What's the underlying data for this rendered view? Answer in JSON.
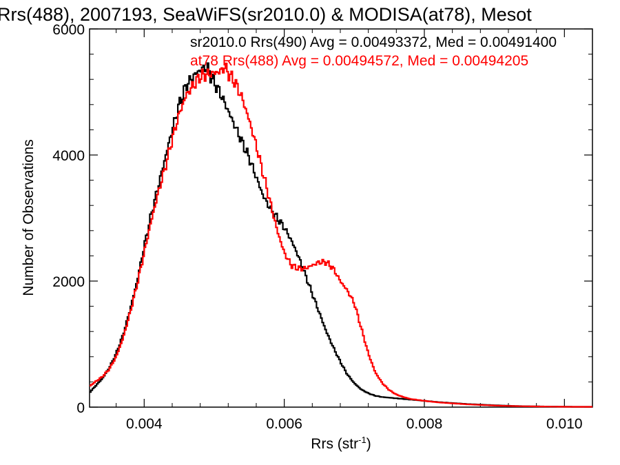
{
  "chart_data": {
    "type": "line",
    "step": true,
    "title": "Rrs(488), 2007193, SeaWiFS(sr2010.0) & MODISA(at78), Mesot",
    "xlabel": "Rrs (str",
    "xlabel_sup": "-1",
    "xlabel_suffix": ")",
    "ylabel": "Number of Observations",
    "xlim": [
      0.00322,
      0.0104
    ],
    "ylim": [
      0,
      6000
    ],
    "xticks": [
      0.004,
      0.006,
      0.008,
      0.01
    ],
    "xtick_labels": [
      "0.004",
      "0.006",
      "0.008",
      "0.010"
    ],
    "yticks": [
      0,
      2000,
      4000,
      6000
    ],
    "ytick_labels": [
      "0",
      "2000",
      "4000",
      "6000"
    ],
    "grid": false,
    "legend_placement": "top",
    "series": [
      {
        "name": "sr2010.0 Rrs(490) Avg = 0.00493372, Med = 0.00491400",
        "color": "#000000",
        "x": [
          0.00322,
          0.0033,
          0.0034,
          0.0035,
          0.0036,
          0.0037,
          0.0038,
          0.0039,
          0.004,
          0.0041,
          0.0042,
          0.0043,
          0.0044,
          0.0045,
          0.0046,
          0.0047,
          0.0048,
          0.0049,
          0.00495,
          0.005,
          0.0051,
          0.0052,
          0.0053,
          0.0054,
          0.0055,
          0.0056,
          0.0057,
          0.0058,
          0.0059,
          0.006,
          0.0061,
          0.0062,
          0.0063,
          0.0064,
          0.0065,
          0.0066,
          0.0067,
          0.0068,
          0.0069,
          0.007,
          0.0071,
          0.0072,
          0.0073,
          0.0074,
          0.0075,
          0.0076,
          0.0077,
          0.0078,
          0.008,
          0.0082,
          0.0084,
          0.0086,
          0.0088,
          0.009,
          0.0092,
          0.0094,
          0.0096,
          0.0098,
          0.01,
          0.0102,
          0.0104
        ],
        "y": [
          230,
          330,
          450,
          620,
          850,
          1150,
          1550,
          2000,
          2550,
          3050,
          3500,
          3950,
          4400,
          4800,
          5100,
          5250,
          5350,
          5400,
          5250,
          5150,
          4950,
          4700,
          4450,
          4200,
          3950,
          3650,
          3350,
          3150,
          3000,
          2850,
          2650,
          2400,
          2100,
          1800,
          1500,
          1200,
          950,
          720,
          520,
          380,
          280,
          220,
          180,
          160,
          150,
          140,
          130,
          120,
          100,
          80,
          65,
          50,
          40,
          30,
          22,
          15,
          12,
          9,
          7,
          5,
          5
        ]
      },
      {
        "name": "at78 Rrs(488) Avg = 0.00494572, Med = 0.00494205",
        "color": "#ff0000",
        "x": [
          0.00322,
          0.0033,
          0.0034,
          0.0035,
          0.0036,
          0.0037,
          0.0038,
          0.0039,
          0.004,
          0.0041,
          0.0042,
          0.0043,
          0.0044,
          0.0045,
          0.0046,
          0.0047,
          0.0048,
          0.0049,
          0.005,
          0.0051,
          0.00515,
          0.0052,
          0.0053,
          0.0054,
          0.0055,
          0.0056,
          0.0057,
          0.0058,
          0.0059,
          0.006,
          0.0061,
          0.0062,
          0.0063,
          0.0064,
          0.0065,
          0.0066,
          0.0067,
          0.0068,
          0.0069,
          0.007,
          0.0071,
          0.0072,
          0.0073,
          0.0074,
          0.0075,
          0.0076,
          0.0077,
          0.0078,
          0.008,
          0.0082,
          0.0084,
          0.0086,
          0.0088,
          0.009,
          0.0092,
          0.0094,
          0.0096,
          0.0098,
          0.01,
          0.0102,
          0.0104
        ],
        "y": [
          330,
          400,
          480,
          600,
          800,
          1100,
          1500,
          1950,
          2450,
          2950,
          3400,
          3800,
          4250,
          4650,
          4950,
          5100,
          5250,
          5280,
          5300,
          5330,
          5400,
          5300,
          5150,
          4900,
          4550,
          4150,
          3700,
          3250,
          2800,
          2450,
          2250,
          2200,
          2200,
          2250,
          2300,
          2300,
          2200,
          2000,
          1850,
          1650,
          1250,
          850,
          550,
          380,
          270,
          200,
          160,
          130,
          100,
          75,
          60,
          45,
          35,
          25,
          18,
          14,
          11,
          8,
          6,
          5,
          5
        ]
      }
    ]
  }
}
